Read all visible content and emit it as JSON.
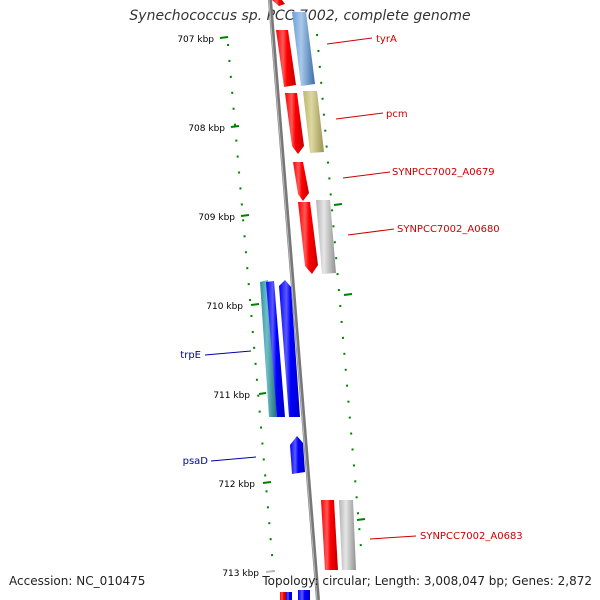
{
  "title": "Synechococcus sp. PCC 7002, complete genome",
  "footer": {
    "accession": "Accession: NC_010475",
    "topology": "Topology: circular; Length: 3,008,047 bp; Genes: 2,872"
  },
  "scale_labels": [
    "707 kbp",
    "708 kbp",
    "709 kbp",
    "710 kbp",
    "711 kbp",
    "712 kbp",
    "713 kbp"
  ],
  "gene_labels": {
    "tyrA": "tyrA",
    "pcm": "pcm",
    "a0679": "SYNPCC7002_A0679",
    "a0680": "SYNPCC7002_A0680",
    "a0683": "SYNPCC7002_A0683",
    "trpE": "trpE",
    "psaD": "psaD"
  },
  "colors": {
    "forward_strand": "#ff0000",
    "reverse_strand": "#0000ff",
    "forward_label": "#cc0000",
    "reverse_label": "#0000aa",
    "ticks": "#008000",
    "backbone": "#888888",
    "cog_blue": "#4f86c6",
    "cog_olive": "#bdb76b",
    "cog_grey": "#b4b4b4",
    "cog_teal": "#2f8fa0"
  }
}
